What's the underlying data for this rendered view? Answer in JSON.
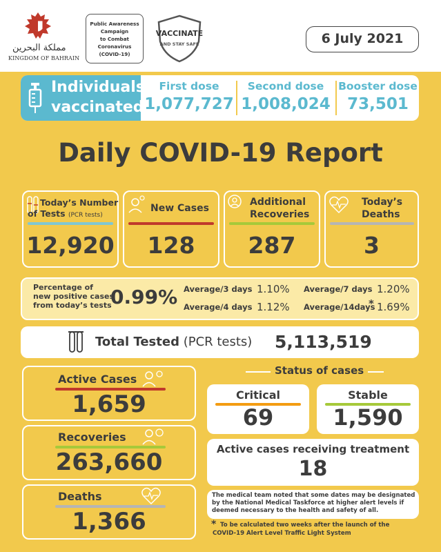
{
  "header": {
    "brand_arabic": "مملكة البحرين",
    "brand_english": "KINGDOM OF BAHRAIN",
    "campaign_lines": [
      "Public Awareness",
      "Campaign",
      "to Combat",
      "Coronavirus",
      "(COVID-19)"
    ],
    "vaccinate_title": "VACCINATE",
    "vaccinate_sub": "AND STAY SAFE",
    "date": "6 July 2021"
  },
  "vaccination": {
    "label_line1": "Individuals",
    "label_line2": "vaccinated",
    "first_dose_label": "First dose",
    "first_dose_value": "1,077,727",
    "second_dose_label": "Second dose",
    "second_dose_value": "1,008,024",
    "booster_dose_label": "Booster dose",
    "booster_dose_value": "73,501"
  },
  "title": "Daily COVID-19 Report",
  "today": {
    "tests_label_1": "Today’s Number",
    "tests_label_2": "of Tests",
    "tests_label_note": "(PCR tests)",
    "tests_value": "12,920",
    "new_cases_label": "New Cases",
    "new_cases_value": "128",
    "recoveries_label_1": "Additional",
    "recoveries_label_2": "Recoveries",
    "recoveries_value": "287",
    "deaths_label_1": "Today’s",
    "deaths_label_2": "Deaths",
    "deaths_value": "3"
  },
  "positivity": {
    "label_1": "Percentage of",
    "label_2": "new positive cases",
    "label_3": "from today’s tests",
    "value": "0.99%",
    "avg3_label": "Average/3 days",
    "avg3_value": "1.10%",
    "avg4_label": "Average/4 days",
    "avg4_value": "1.12%",
    "avg7_label": "Average/7 days",
    "avg7_value": "1.20%",
    "avg14_label": "Average/14days",
    "avg14_star": "*",
    "avg14_value": "1.69%"
  },
  "total_tested": {
    "label_bold": "Total Tested",
    "label_note": "(PCR tests)",
    "value": "5,113,519"
  },
  "totals": {
    "active_label": "Active Cases",
    "active_value": "1,659",
    "recoveries_label": "Recoveries",
    "recoveries_value": "263,660",
    "deaths_label": "Deaths",
    "deaths_value": "1,366"
  },
  "status": {
    "heading": "Status of cases",
    "critical_label": "Critical",
    "critical_value": "69",
    "stable_label": "Stable",
    "stable_value": "1,590",
    "treatment_label": "Active cases receiving treatment",
    "treatment_value": "18"
  },
  "notes": {
    "medical_1": "The medical team noted that some dates may be designated",
    "medical_2": "by the National Medical Taskforce at higher alert levels if",
    "medical_3": "deemed necessary to the health and safety of all.",
    "star": "*",
    "footnote_1": "To be calculated two weeks after the launch of the",
    "footnote_2": "COVID-19 Alert Level Traffic Light System"
  },
  "colors": {
    "yellow": "#f2c94c",
    "teal": "#5bb9cf",
    "red_bar": "#c0392b",
    "green_bar": "#a6c93a",
    "gray_bar": "#b5b5b5",
    "teal_bar": "#7fc7d3",
    "orange_bar": "#f39c12"
  }
}
